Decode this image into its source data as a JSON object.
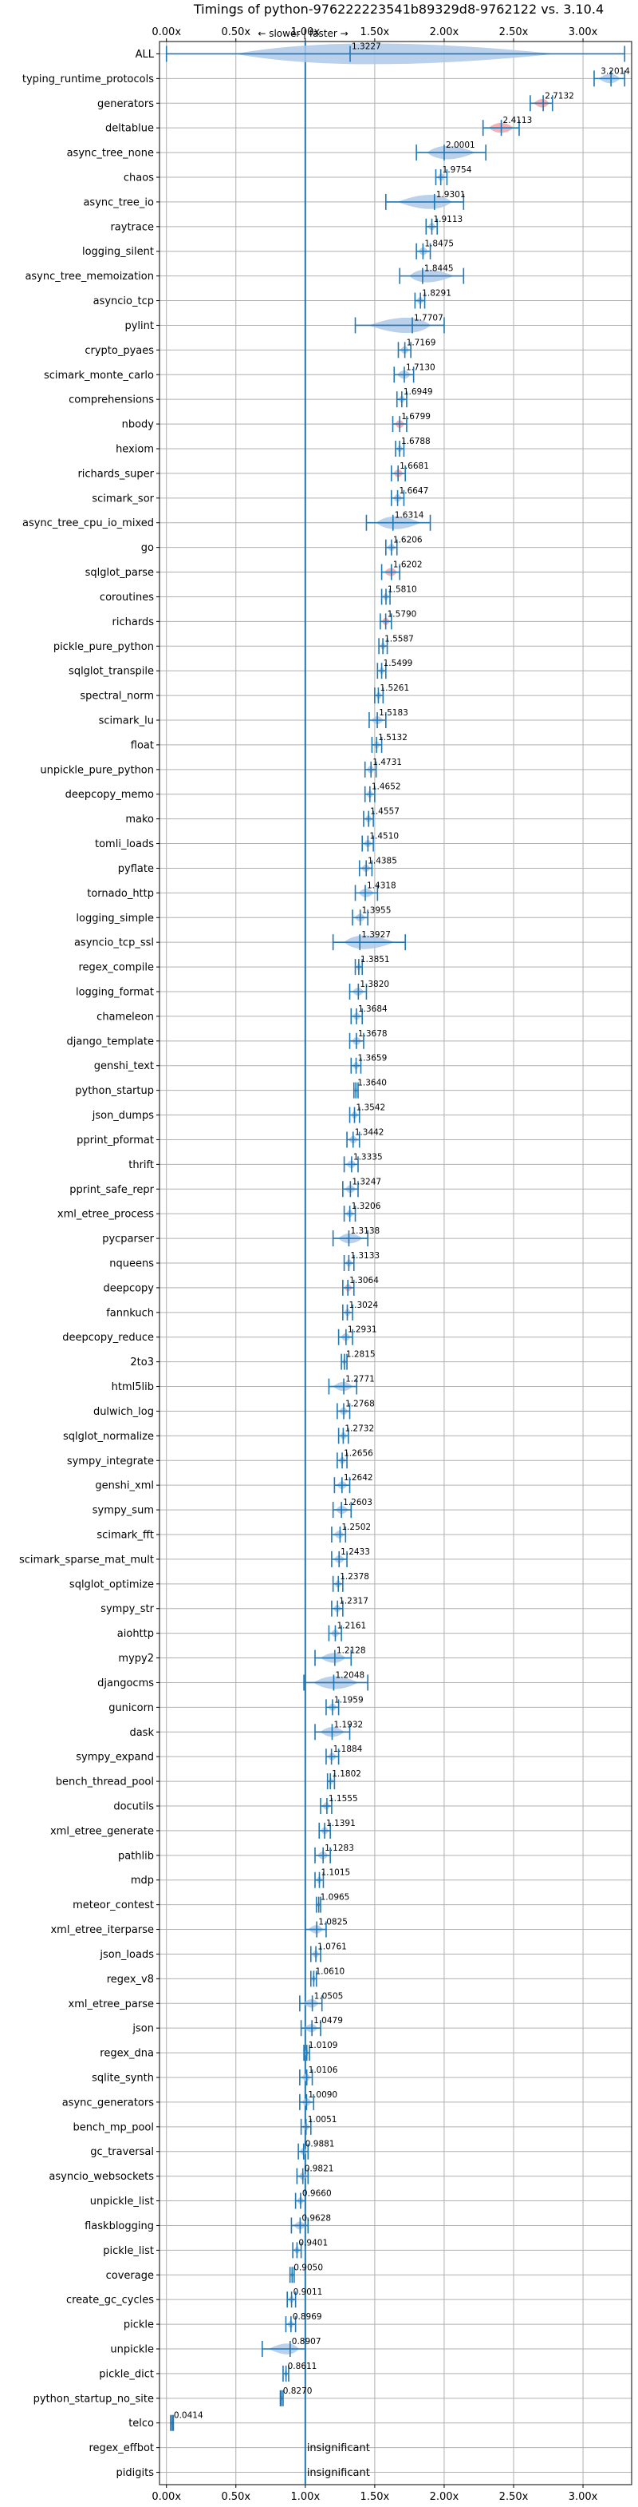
{
  "chart_data": {
    "type": "violin",
    "title": "Timings of python-976222223541b89329d8-9762122 vs. 3.10.4",
    "annotation": "← slower | faster →",
    "xlim": [
      -0.05,
      3.35
    ],
    "xticks": [
      0,
      0.5,
      1,
      1.5,
      2,
      2.5,
      3
    ],
    "xtick_labels": [
      "0.00x",
      "0.50x",
      "1.00x",
      "1.50x",
      "2.00x",
      "2.50x",
      "3.00x"
    ],
    "reference_line": 1.0,
    "grid": true,
    "categories": [
      "ALL",
      "typing_runtime_protocols",
      "generators",
      "deltablue",
      "async_tree_none",
      "chaos",
      "async_tree_io",
      "raytrace",
      "logging_silent",
      "async_tree_memoization",
      "asyncio_tcp",
      "pylint",
      "crypto_pyaes",
      "scimark_monte_carlo",
      "comprehensions",
      "nbody",
      "hexiom",
      "richards_super",
      "scimark_sor",
      "async_tree_cpu_io_mixed",
      "go",
      "sqlglot_parse",
      "coroutines",
      "richards",
      "pickle_pure_python",
      "sqlglot_transpile",
      "spectral_norm",
      "scimark_lu",
      "float",
      "unpickle_pure_python",
      "deepcopy_memo",
      "mako",
      "tomli_loads",
      "pyflate",
      "tornado_http",
      "logging_simple",
      "asyncio_tcp_ssl",
      "regex_compile",
      "logging_format",
      "chameleon",
      "django_template",
      "genshi_text",
      "python_startup",
      "json_dumps",
      "pprint_pformat",
      "thrift",
      "pprint_safe_repr",
      "xml_etree_process",
      "pycparser",
      "nqueens",
      "deepcopy",
      "fannkuch",
      "deepcopy_reduce",
      "2to3",
      "html5lib",
      "dulwich_log",
      "sqlglot_normalize",
      "sympy_integrate",
      "genshi_xml",
      "sympy_sum",
      "scimark_fft",
      "scimark_sparse_mat_mult",
      "sqlglot_optimize",
      "sympy_str",
      "aiohttp",
      "mypy2",
      "djangocms",
      "gunicorn",
      "dask",
      "sympy_expand",
      "bench_thread_pool",
      "docutils",
      "xml_etree_generate",
      "pathlib",
      "mdp",
      "meteor_contest",
      "xml_etree_iterparse",
      "json_loads",
      "regex_v8",
      "xml_etree_parse",
      "json",
      "regex_dna",
      "sqlite_synth",
      "async_generators",
      "bench_mp_pool",
      "gc_traversal",
      "asyncio_websockets",
      "unpickle_list",
      "flaskblogging",
      "pickle_list",
      "coverage",
      "create_gc_cycles",
      "pickle",
      "unpickle",
      "pickle_dict",
      "python_startup_no_site",
      "telco",
      "regex_effbot",
      "pidigits"
    ],
    "values": [
      1.3227,
      3.2014,
      2.7132,
      2.4113,
      2.0001,
      1.9754,
      1.9301,
      1.9113,
      1.8475,
      1.8445,
      1.8291,
      1.7707,
      1.7169,
      1.713,
      1.6949,
      1.6799,
      1.6788,
      1.6681,
      1.6647,
      1.6314,
      1.6206,
      1.6202,
      1.581,
      1.579,
      1.5587,
      1.5499,
      1.5261,
      1.5183,
      1.5132,
      1.4731,
      1.4652,
      1.4557,
      1.451,
      1.4385,
      1.4318,
      1.3955,
      1.3927,
      1.3851,
      1.382,
      1.3684,
      1.3678,
      1.3659,
      1.364,
      1.3542,
      1.3442,
      1.3335,
      1.3247,
      1.3206,
      1.3138,
      1.3133,
      1.3064,
      1.3024,
      1.2931,
      1.2815,
      1.2771,
      1.2768,
      1.2732,
      1.2656,
      1.2642,
      1.2603,
      1.2502,
      1.2433,
      1.2378,
      1.2317,
      1.2161,
      1.2128,
      1.2048,
      1.1959,
      1.1932,
      1.1884,
      1.1802,
      1.1555,
      1.1391,
      1.1283,
      1.1015,
      1.0965,
      1.0825,
      1.0761,
      1.061,
      1.0505,
      1.0479,
      1.0109,
      1.0106,
      1.009,
      1.0051,
      0.9881,
      0.9821,
      0.966,
      0.9628,
      0.9401,
      0.905,
      0.9011,
      0.8969,
      0.8907,
      0.8611,
      0.827,
      0.0414,
      null,
      null
    ],
    "value_labels": [
      "1.3227",
      "3.2014",
      "2.7132",
      "2.4113",
      "2.0001",
      "1.9754",
      "1.9301",
      "1.9113",
      "1.8475",
      "1.8445",
      "1.8291",
      "1.7707",
      "1.7169",
      "1.7130",
      "1.6949",
      "1.6799",
      "1.6788",
      "1.6681",
      "1.6647",
      "1.6314",
      "1.6206",
      "1.6202",
      "1.5810",
      "1.5790",
      "1.5587",
      "1.5499",
      "1.5261",
      "1.5183",
      "1.5132",
      "1.4731",
      "1.4652",
      "1.4557",
      "1.4510",
      "1.4385",
      "1.4318",
      "1.3955",
      "1.3927",
      "1.3851",
      "1.3820",
      "1.3684",
      "1.3678",
      "1.3659",
      "1.3640",
      "1.3542",
      "1.3442",
      "1.3335",
      "1.3247",
      "1.3206",
      "1.3138",
      "1.3133",
      "1.3064",
      "1.3024",
      "1.2931",
      "1.2815",
      "1.2771",
      "1.2768",
      "1.2732",
      "1.2656",
      "1.2642",
      "1.2603",
      "1.2502",
      "1.2433",
      "1.2378",
      "1.2317",
      "1.2161",
      "1.2128",
      "1.2048",
      "1.1959",
      "1.1932",
      "1.1884",
      "1.1802",
      "1.1555",
      "1.1391",
      "1.1283",
      "1.1015",
      "1.0965",
      "1.0825",
      "1.0761",
      "1.0610",
      "1.0505",
      "1.0479",
      "1.0109",
      "1.0106",
      "1.0090",
      "1.0051",
      "0.9881",
      "0.9821",
      "0.9660",
      "0.9628",
      "0.9401",
      "0.9050",
      "0.9011",
      "0.8969",
      "0.8907",
      "0.8611",
      "0.8270",
      "0.0414",
      "insignificant",
      "insignificant"
    ],
    "ranges": [
      [
        0.0,
        3.3
      ],
      [
        3.08,
        3.3
      ],
      [
        2.62,
        2.78
      ],
      [
        2.28,
        2.54
      ],
      [
        1.8,
        2.3
      ],
      [
        1.94,
        2.02
      ],
      [
        1.58,
        2.14
      ],
      [
        1.87,
        1.95
      ],
      [
        1.8,
        1.9
      ],
      [
        1.68,
        2.14
      ],
      [
        1.79,
        1.86
      ],
      [
        1.36,
        2.0
      ],
      [
        1.67,
        1.76
      ],
      [
        1.64,
        1.78
      ],
      [
        1.66,
        1.73
      ],
      [
        1.63,
        1.73
      ],
      [
        1.65,
        1.71
      ],
      [
        1.62,
        1.72
      ],
      [
        1.62,
        1.71
      ],
      [
        1.44,
        1.9
      ],
      [
        1.58,
        1.66
      ],
      [
        1.55,
        1.68
      ],
      [
        1.55,
        1.61
      ],
      [
        1.54,
        1.62
      ],
      [
        1.53,
        1.59
      ],
      [
        1.52,
        1.58
      ],
      [
        1.5,
        1.56
      ],
      [
        1.46,
        1.58
      ],
      [
        1.48,
        1.55
      ],
      [
        1.43,
        1.51
      ],
      [
        1.43,
        1.5
      ],
      [
        1.42,
        1.49
      ],
      [
        1.41,
        1.49
      ],
      [
        1.39,
        1.48
      ],
      [
        1.36,
        1.52
      ],
      [
        1.34,
        1.45
      ],
      [
        1.2,
        1.72
      ],
      [
        1.36,
        1.41
      ],
      [
        1.32,
        1.44
      ],
      [
        1.33,
        1.41
      ],
      [
        1.32,
        1.42
      ],
      [
        1.33,
        1.4
      ],
      [
        1.35,
        1.38
      ],
      [
        1.32,
        1.39
      ],
      [
        1.3,
        1.39
      ],
      [
        1.28,
        1.38
      ],
      [
        1.27,
        1.38
      ],
      [
        1.28,
        1.36
      ],
      [
        1.2,
        1.45
      ],
      [
        1.28,
        1.35
      ],
      [
        1.27,
        1.35
      ],
      [
        1.27,
        1.34
      ],
      [
        1.24,
        1.34
      ],
      [
        1.26,
        1.3
      ],
      [
        1.17,
        1.37
      ],
      [
        1.23,
        1.32
      ],
      [
        1.24,
        1.31
      ],
      [
        1.23,
        1.3
      ],
      [
        1.21,
        1.32
      ],
      [
        1.2,
        1.33
      ],
      [
        1.19,
        1.29
      ],
      [
        1.19,
        1.3
      ],
      [
        1.2,
        1.27
      ],
      [
        1.19,
        1.27
      ],
      [
        1.17,
        1.26
      ],
      [
        1.07,
        1.33
      ],
      [
        0.99,
        1.45
      ],
      [
        1.15,
        1.24
      ],
      [
        1.07,
        1.32
      ],
      [
        1.15,
        1.24
      ],
      [
        1.16,
        1.21
      ],
      [
        1.11,
        1.19
      ],
      [
        1.1,
        1.18
      ],
      [
        1.07,
        1.18
      ],
      [
        1.07,
        1.13
      ],
      [
        1.08,
        1.11
      ],
      [
        1.0,
        1.15
      ],
      [
        1.04,
        1.11
      ],
      [
        1.04,
        1.08
      ],
      [
        0.96,
        1.12
      ],
      [
        0.97,
        1.11
      ],
      [
        0.99,
        1.03
      ],
      [
        0.96,
        1.05
      ],
      [
        0.96,
        1.06
      ],
      [
        0.97,
        1.04
      ],
      [
        0.95,
        1.02
      ],
      [
        0.94,
        1.02
      ],
      [
        0.93,
        1.0
      ],
      [
        0.9,
        1.02
      ],
      [
        0.91,
        0.97
      ],
      [
        0.89,
        0.92
      ],
      [
        0.87,
        0.93
      ],
      [
        0.86,
        0.93
      ],
      [
        0.69,
        1.0
      ],
      [
        0.84,
        0.88
      ],
      [
        0.82,
        0.84
      ],
      [
        0.03,
        0.05
      ],
      null,
      null
    ],
    "highlight_regressions": [
      "generators",
      "deltablue",
      "richards_super",
      "nbody",
      "sqlglot_parse",
      "richards",
      "deepcopy"
    ],
    "colors": {
      "violin_fill": "#aec8e8",
      "whisker": "#1f77b4",
      "highlight_fill": "#f4a3a8",
      "reference_line": "#1f77b4",
      "grid": "#b0b0b0"
    }
  }
}
